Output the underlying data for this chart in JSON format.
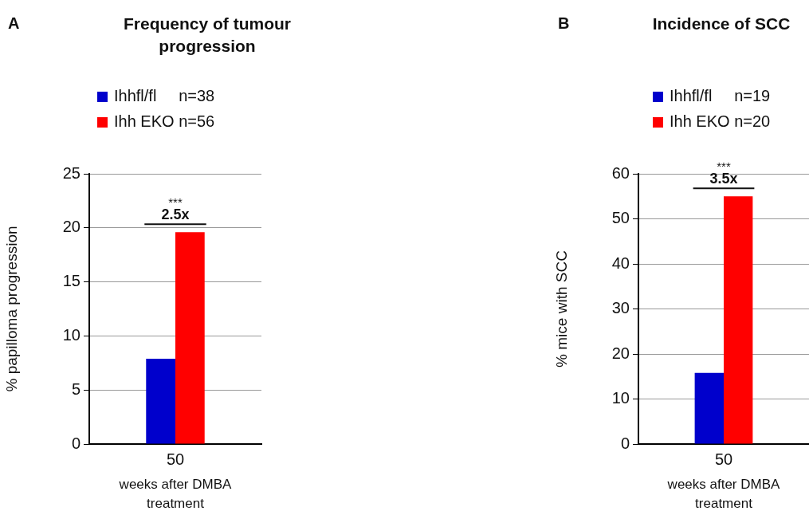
{
  "chart_data": [
    {
      "type": "bar",
      "title": "Frequency of tumour progression",
      "ylabel": "% papilloma progression",
      "xlabel": "weeks after DMBA treatment",
      "categories": [
        "50"
      ],
      "series": [
        {
          "name": "Ihhfl/fl     n=38",
          "color": "#0000cc",
          "values": [
            7.9
          ]
        },
        {
          "name": "Ihh EKO n=56",
          "color": "#ff0000",
          "values": [
            19.6
          ]
        }
      ],
      "ylim": [
        0,
        25
      ],
      "yticks": [
        0,
        5,
        10,
        15,
        20,
        25
      ],
      "grid": "y",
      "legend": "top",
      "annotations": [
        "A",
        "***",
        "2.5x"
      ]
    },
    {
      "type": "bar",
      "title": "Incidence of SCC",
      "ylabel": "% mice with SCC",
      "xlabel": "weeks after DMBA treatment",
      "categories": [
        "50"
      ],
      "series": [
        {
          "name": "Ihhfl/fl     n=19",
          "color": "#0000cc",
          "values": [
            15.8
          ]
        },
        {
          "name": "Ihh EKO n=20",
          "color": "#ff0000",
          "values": [
            55
          ]
        }
      ],
      "ylim": [
        0,
        60
      ],
      "yticks": [
        0,
        10,
        20,
        30,
        40,
        50,
        60
      ],
      "grid": "y",
      "legend": "top",
      "annotations": [
        "B",
        "***",
        "3.5x"
      ]
    }
  ]
}
